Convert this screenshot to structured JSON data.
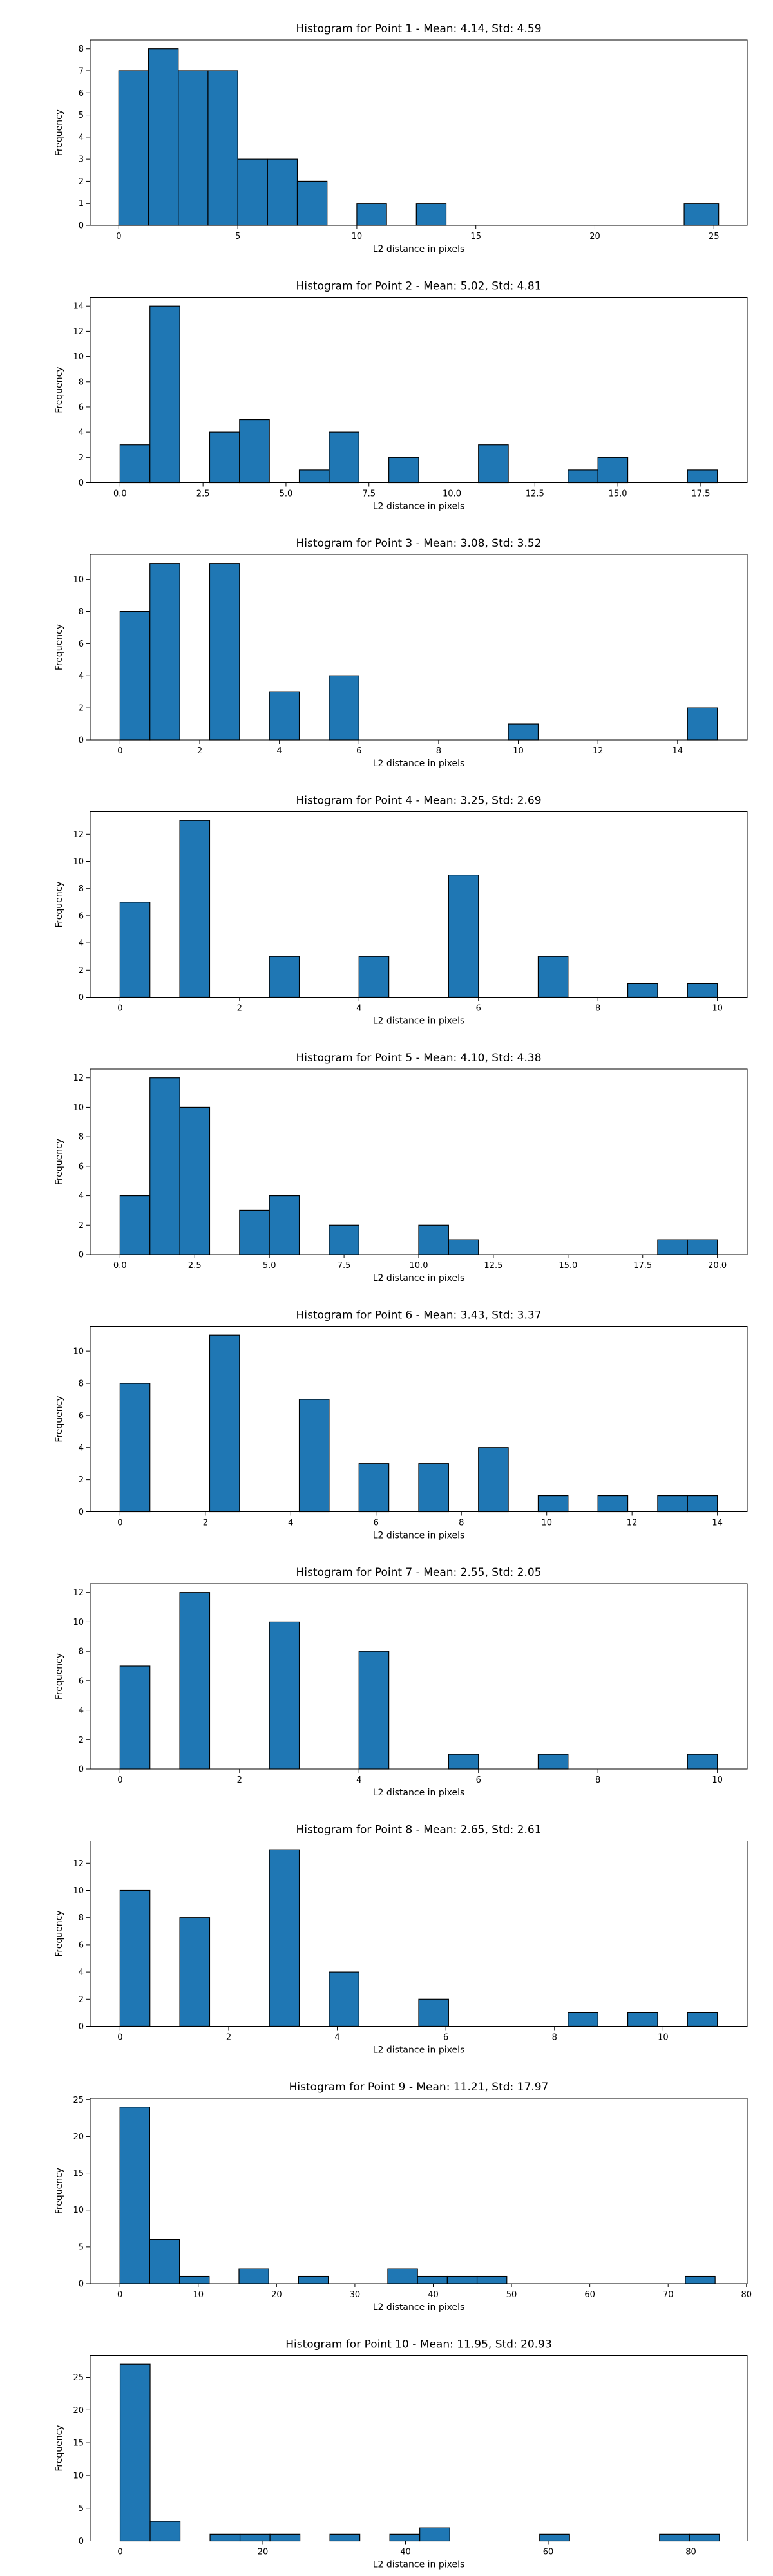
{
  "style": {
    "bar_color": "#1f77b4",
    "edge_color": "#000000",
    "background": "#ffffff"
  },
  "chart_data": [
    {
      "type": "bar",
      "title": "Histogram for Point 1 - Mean: 4.14, Std: 4.59",
      "xlabel": "L2 distance in pixels",
      "ylabel": "Frequency",
      "xlim": [
        -1.2,
        26.4
      ],
      "ylim": [
        0,
        8.4
      ],
      "xticks": [
        0,
        5,
        10,
        15,
        20,
        25
      ],
      "xtick_labels": [
        "0",
        "5",
        "10",
        "15",
        "20",
        "25"
      ],
      "yticks": [
        0,
        1,
        2,
        3,
        4,
        5,
        6,
        7,
        8
      ],
      "ytick_labels": [
        "0",
        "1",
        "2",
        "3",
        "4",
        "5",
        "6",
        "7",
        "8"
      ],
      "bin_edges": [
        0,
        1.25,
        2.5,
        3.75,
        5,
        6.25,
        7.5,
        8.75,
        10,
        11.25,
        12.5,
        13.75,
        15,
        16.25,
        17.5,
        18.75,
        20,
        21.25,
        22.5,
        23.75,
        25.2
      ],
      "values": [
        7,
        8,
        7,
        7,
        3,
        3,
        2,
        0,
        1,
        0,
        1,
        0,
        0,
        0,
        0,
        0,
        0,
        0,
        0,
        1
      ]
    },
    {
      "type": "bar",
      "title": "Histogram for Point 2 - Mean: 5.02, Std: 4.81",
      "xlabel": "L2 distance in pixels",
      "ylabel": "Frequency",
      "xlim": [
        -0.9,
        18.9
      ],
      "ylim": [
        0,
        14.7
      ],
      "xticks": [
        0,
        2.5,
        5,
        7.5,
        10,
        12.5,
        15,
        17.5
      ],
      "xtick_labels": [
        "0.0",
        "2.5",
        "5.0",
        "7.5",
        "10.0",
        "12.5",
        "15.0",
        "17.5"
      ],
      "yticks": [
        0,
        2,
        4,
        6,
        8,
        10,
        12,
        14
      ],
      "ytick_labels": [
        "0",
        "2",
        "4",
        "6",
        "8",
        "10",
        "12",
        "14"
      ],
      "bin_edges": [
        0,
        0.9,
        1.8,
        2.7,
        3.6,
        4.5,
        5.4,
        6.3,
        7.2,
        8.1,
        9.0,
        9.9,
        10.8,
        11.7,
        12.6,
        13.5,
        14.4,
        15.3,
        16.2,
        17.1,
        18.0
      ],
      "values": [
        3,
        14,
        0,
        4,
        5,
        0,
        1,
        4,
        0,
        2,
        0,
        0,
        3,
        0,
        0,
        1,
        2,
        0,
        0,
        1
      ]
    },
    {
      "type": "bar",
      "title": "Histogram for Point 3 - Mean: 3.08, Std: 3.52",
      "xlabel": "L2 distance in pixels",
      "ylabel": "Frequency",
      "xlim": [
        -0.75,
        15.75
      ],
      "ylim": [
        0,
        11.55
      ],
      "xticks": [
        0,
        2,
        4,
        6,
        8,
        10,
        12,
        14
      ],
      "xtick_labels": [
        "0",
        "2",
        "4",
        "6",
        "8",
        "10",
        "12",
        "14"
      ],
      "yticks": [
        0,
        2,
        4,
        6,
        8,
        10
      ],
      "ytick_labels": [
        "0",
        "2",
        "4",
        "6",
        "8",
        "10"
      ],
      "bin_edges": [
        0,
        0.75,
        1.5,
        2.25,
        3.0,
        3.75,
        4.5,
        5.25,
        6.0,
        6.75,
        7.5,
        8.25,
        9.0,
        9.75,
        10.5,
        11.25,
        12.0,
        12.75,
        13.5,
        14.25,
        15.0
      ],
      "values": [
        8,
        11,
        0,
        11,
        0,
        3,
        0,
        4,
        0,
        0,
        0,
        0,
        0,
        1,
        0,
        0,
        0,
        0,
        0,
        2
      ]
    },
    {
      "type": "bar",
      "title": "Histogram for Point 4 - Mean: 3.25, Std: 2.69",
      "xlabel": "L2 distance in pixels",
      "ylabel": "Frequency",
      "xlim": [
        -0.5,
        10.5
      ],
      "ylim": [
        0,
        13.65
      ],
      "xticks": [
        0,
        2,
        4,
        6,
        8,
        10
      ],
      "xtick_labels": [
        "0",
        "2",
        "4",
        "6",
        "8",
        "10"
      ],
      "yticks": [
        0,
        2,
        4,
        6,
        8,
        10,
        12
      ],
      "ytick_labels": [
        "0",
        "2",
        "4",
        "6",
        "8",
        "10",
        "12"
      ],
      "bin_edges": [
        0,
        0.5,
        1.0,
        1.5,
        2.0,
        2.5,
        3.0,
        3.5,
        4.0,
        4.5,
        5.0,
        5.5,
        6.0,
        6.5,
        7.0,
        7.5,
        8.0,
        8.5,
        9.0,
        9.5,
        10.0
      ],
      "values": [
        7,
        0,
        13,
        0,
        0,
        3,
        0,
        0,
        3,
        0,
        0,
        9,
        0,
        0,
        3,
        0,
        0,
        1,
        0,
        1
      ]
    },
    {
      "type": "bar",
      "title": "Histogram for Point 5 - Mean: 4.10, Std: 4.38",
      "xlabel": "L2 distance in pixels",
      "ylabel": "Frequency",
      "xlim": [
        -1.0,
        21.0
      ],
      "ylim": [
        0,
        12.6
      ],
      "xticks": [
        0,
        2.5,
        5,
        7.5,
        10,
        12.5,
        15,
        17.5,
        20
      ],
      "xtick_labels": [
        "0.0",
        "2.5",
        "5.0",
        "7.5",
        "10.0",
        "12.5",
        "15.0",
        "17.5",
        "20.0"
      ],
      "yticks": [
        0,
        2,
        4,
        6,
        8,
        10,
        12
      ],
      "ytick_labels": [
        "0",
        "2",
        "4",
        "6",
        "8",
        "10",
        "12"
      ],
      "bin_edges": [
        0,
        1,
        2,
        3,
        4,
        5,
        6,
        7,
        8,
        9,
        10,
        11,
        12,
        13,
        14,
        15,
        16,
        17,
        18,
        19,
        20
      ],
      "values": [
        4,
        12,
        10,
        0,
        3,
        4,
        0,
        2,
        0,
        0,
        2,
        1,
        0,
        0,
        0,
        0,
        0,
        0,
        1,
        1
      ]
    },
    {
      "type": "bar",
      "title": "Histogram for Point 6 - Mean: 3.43, Std: 3.37",
      "xlabel": "L2 distance in pixels",
      "ylabel": "Frequency",
      "xlim": [
        -0.7,
        14.7
      ],
      "ylim": [
        0,
        11.55
      ],
      "xticks": [
        0,
        2,
        4,
        6,
        8,
        10,
        12,
        14
      ],
      "xtick_labels": [
        "0",
        "2",
        "4",
        "6",
        "8",
        "10",
        "12",
        "14"
      ],
      "yticks": [
        0,
        2,
        4,
        6,
        8,
        10
      ],
      "ytick_labels": [
        "0",
        "2",
        "4",
        "6",
        "8",
        "10"
      ],
      "bin_edges": [
        0,
        0.7,
        1.4,
        2.1,
        2.8,
        3.5,
        4.2,
        4.9,
        5.6,
        6.3,
        7.0,
        7.7,
        8.4,
        9.1,
        9.8,
        10.5,
        11.2,
        11.9,
        12.6,
        13.3,
        14.0
      ],
      "values": [
        8,
        0,
        0,
        11,
        0,
        0,
        7,
        0,
        3,
        0,
        3,
        0,
        4,
        0,
        1,
        0,
        1,
        0,
        1,
        1
      ]
    },
    {
      "type": "bar",
      "title": "Histogram for Point 7 - Mean: 2.55, Std: 2.05",
      "xlabel": "L2 distance in pixels",
      "ylabel": "Frequency",
      "xlim": [
        -0.5,
        10.5
      ],
      "ylim": [
        0,
        12.6
      ],
      "xticks": [
        0,
        2,
        4,
        6,
        8,
        10
      ],
      "xtick_labels": [
        "0",
        "2",
        "4",
        "6",
        "8",
        "10"
      ],
      "yticks": [
        0,
        2,
        4,
        6,
        8,
        10,
        12
      ],
      "ytick_labels": [
        "0",
        "2",
        "4",
        "6",
        "8",
        "10",
        "12"
      ],
      "bin_edges": [
        0,
        0.5,
        1.0,
        1.5,
        2.0,
        2.5,
        3.0,
        3.5,
        4.0,
        4.5,
        5.0,
        5.5,
        6.0,
        6.5,
        7.0,
        7.5,
        8.0,
        8.5,
        9.0,
        9.5,
        10.0
      ],
      "values": [
        7,
        0,
        12,
        0,
        0,
        10,
        0,
        0,
        8,
        0,
        0,
        1,
        0,
        0,
        1,
        0,
        0,
        0,
        0,
        1
      ]
    },
    {
      "type": "bar",
      "title": "Histogram for Point 8 - Mean: 2.65, Std: 2.61",
      "xlabel": "L2 distance in pixels",
      "ylabel": "Frequency",
      "xlim": [
        -0.55,
        11.55
      ],
      "ylim": [
        0,
        13.65
      ],
      "xticks": [
        0,
        2,
        4,
        6,
        8,
        10
      ],
      "xtick_labels": [
        "0",
        "2",
        "4",
        "6",
        "8",
        "10"
      ],
      "yticks": [
        0,
        2,
        4,
        6,
        8,
        10,
        12
      ],
      "ytick_labels": [
        "0",
        "2",
        "4",
        "6",
        "8",
        "10",
        "12"
      ],
      "bin_edges": [
        0,
        0.55,
        1.1,
        1.65,
        2.2,
        2.75,
        3.3,
        3.85,
        4.4,
        4.95,
        5.5,
        6.05,
        6.6,
        7.15,
        7.7,
        8.25,
        8.8,
        9.35,
        9.9,
        10.45,
        11.0
      ],
      "values": [
        10,
        0,
        8,
        0,
        0,
        13,
        0,
        4,
        0,
        0,
        2,
        0,
        0,
        0,
        0,
        1,
        0,
        1,
        0,
        1
      ]
    },
    {
      "type": "bar",
      "title": "Histogram for Point 9 - Mean: 11.21, Std: 17.97",
      "xlabel": "L2 distance in pixels",
      "ylabel": "Frequency",
      "xlim": [
        -3.8,
        80.1
      ],
      "ylim": [
        0,
        25.2
      ],
      "xticks": [
        0,
        10,
        20,
        30,
        40,
        50,
        60,
        70,
        80
      ],
      "xtick_labels": [
        "0",
        "10",
        "20",
        "30",
        "40",
        "50",
        "60",
        "70",
        "80"
      ],
      "yticks": [
        0,
        5,
        10,
        15,
        20,
        25
      ],
      "ytick_labels": [
        "0",
        "5",
        "10",
        "15",
        "20",
        "25"
      ],
      "bin_edges": [
        0,
        3.8,
        7.6,
        11.4,
        15.2,
        19.0,
        22.8,
        26.6,
        30.4,
        34.2,
        38.0,
        41.8,
        45.6,
        49.4,
        53.2,
        57.0,
        60.8,
        64.6,
        68.4,
        72.2,
        76.0
      ],
      "values": [
        24,
        6,
        1,
        0,
        2,
        0,
        1,
        0,
        0,
        2,
        1,
        1,
        1,
        0,
        0,
        0,
        0,
        0,
        0,
        1
      ]
    },
    {
      "type": "bar",
      "title": "Histogram for Point 10 - Mean: 11.95, Std: 20.93",
      "xlabel": "L2 distance in pixels",
      "ylabel": "Frequency",
      "xlim": [
        -4.2,
        87.9
      ],
      "ylim": [
        0,
        28.35
      ],
      "xticks": [
        0,
        20,
        40,
        60,
        80
      ],
      "xtick_labels": [
        "0",
        "20",
        "40",
        "60",
        "80"
      ],
      "yticks": [
        0,
        5,
        10,
        15,
        20,
        25
      ],
      "ytick_labels": [
        "0",
        "5",
        "10",
        "15",
        "20",
        "25"
      ],
      "bin_edges": [
        0,
        4.2,
        8.4,
        12.6,
        16.8,
        21.0,
        25.2,
        29.4,
        33.6,
        37.8,
        42.0,
        46.2,
        50.4,
        54.6,
        58.8,
        63.0,
        67.2,
        71.4,
        75.6,
        79.8,
        84.0
      ],
      "values": [
        27,
        3,
        0,
        1,
        1,
        1,
        0,
        1,
        0,
        1,
        2,
        0,
        0,
        0,
        1,
        0,
        0,
        0,
        1,
        1
      ]
    }
  ]
}
